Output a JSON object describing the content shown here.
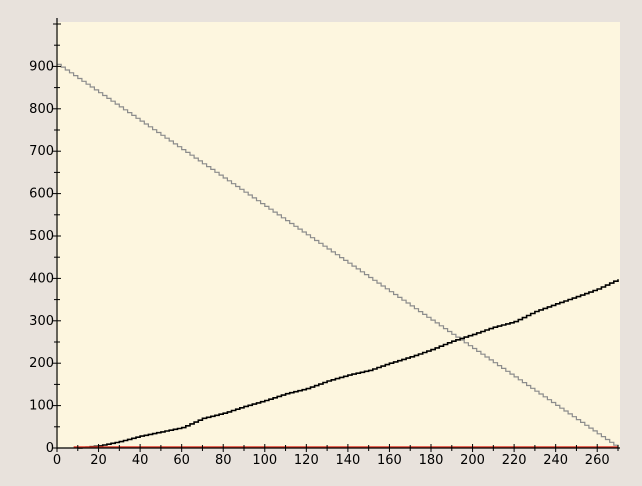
{
  "colors": {
    "frame_bg": "#e8e2dc",
    "plot_bg": "#fdf6df",
    "axis": "#000000",
    "decreasing_series": "#8c8c8c",
    "increasing_series": "#000000",
    "baseline_series": "#e03a2a"
  },
  "chart_data": {
    "type": "line",
    "title": "",
    "xlabel": "",
    "ylabel": "",
    "xlim": [
      0,
      270
    ],
    "ylim": [
      0,
      1000
    ],
    "x_ticks": [
      0,
      20,
      40,
      60,
      80,
      100,
      120,
      140,
      160,
      180,
      200,
      220,
      240,
      260
    ],
    "x_tick_labels": [
      "0",
      "20",
      "40",
      "60",
      "80",
      "100",
      "120",
      "140",
      "160",
      "180",
      "200",
      "220",
      "240",
      "260"
    ],
    "y_ticks": [
      0,
      100,
      200,
      300,
      400,
      500,
      600,
      700,
      800,
      900
    ],
    "y_tick_labels": [
      "0",
      "100",
      "200",
      "300",
      "400",
      "500",
      "600",
      "700",
      "800",
      "900"
    ],
    "grid": false,
    "legend": "none",
    "series": [
      {
        "x": [
          0,
          270
        ],
        "y": [
          905,
          0
        ]
      },
      {
        "x": [
          10,
          20,
          30,
          40,
          50,
          60,
          70,
          80,
          90,
          100,
          110,
          120,
          130,
          140,
          150,
          160,
          170,
          180,
          190,
          200,
          210,
          220,
          230,
          240,
          250,
          260,
          270
        ],
        "y": [
          0,
          5,
          15,
          28,
          38,
          48,
          70,
          82,
          98,
          112,
          128,
          140,
          158,
          172,
          183,
          200,
          215,
          232,
          252,
          268,
          285,
          298,
          322,
          340,
          357,
          375,
          398
        ]
      },
      {
        "x": [
          8,
          270
        ],
        "y": [
          0,
          0
        ]
      }
    ]
  }
}
